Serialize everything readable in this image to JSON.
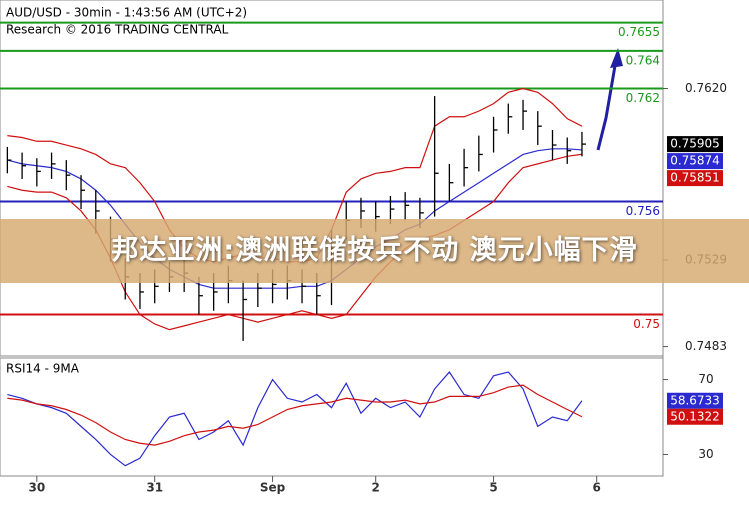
{
  "banner": "邦达亚洲:澳洲联储按兵不动 澳元小幅下滑",
  "chart_data": [
    {
      "type": "ohlc",
      "title": "AUD/USD - 30min - 1:43:56 AM (UTC+2)",
      "subtitle": "Research © 2016 TRADING CENTRAL",
      "x": [
        0,
        1,
        2,
        3,
        4,
        5,
        6,
        7,
        8,
        9,
        10,
        11,
        12,
        13,
        14,
        15,
        16,
        17,
        18,
        19,
        20,
        21,
        22,
        23,
        24,
        25,
        26,
        27,
        28,
        29,
        30,
        31,
        32,
        33,
        34,
        35,
        36,
        37,
        38,
        39
      ],
      "high": [
        0.7589,
        0.7586,
        0.7583,
        0.7586,
        0.7582,
        0.7574,
        0.7566,
        0.7552,
        0.753,
        0.7522,
        0.7524,
        0.7528,
        0.753,
        0.752,
        0.7522,
        0.7526,
        0.7518,
        0.7522,
        0.7524,
        0.7526,
        0.7524,
        0.7522,
        0.7545,
        0.756,
        0.7562,
        0.756,
        0.7563,
        0.7565,
        0.7562,
        0.7616,
        0.758,
        0.7588,
        0.7595,
        0.7605,
        0.7612,
        0.7614,
        0.7608,
        0.7598,
        0.7594,
        0.7597
      ],
      "low": [
        0.7575,
        0.7572,
        0.7568,
        0.7572,
        0.7566,
        0.7556,
        0.7543,
        0.7528,
        0.7508,
        0.7503,
        0.7506,
        0.7512,
        0.7512,
        0.75,
        0.7502,
        0.7506,
        0.7486,
        0.7504,
        0.7506,
        0.7508,
        0.7506,
        0.75,
        0.7505,
        0.754,
        0.7546,
        0.7544,
        0.7548,
        0.755,
        0.7546,
        0.7552,
        0.756,
        0.7568,
        0.7576,
        0.7586,
        0.7596,
        0.7598,
        0.759,
        0.7582,
        0.758,
        0.7584
      ],
      "close": [
        0.7582,
        0.7579,
        0.7576,
        0.758,
        0.7574,
        0.7566,
        0.7555,
        0.754,
        0.752,
        0.7512,
        0.7515,
        0.752,
        0.7522,
        0.751,
        0.7512,
        0.7518,
        0.7508,
        0.7514,
        0.7516,
        0.7518,
        0.7515,
        0.751,
        0.7535,
        0.755,
        0.7555,
        0.7552,
        0.7556,
        0.7558,
        0.7554,
        0.7575,
        0.757,
        0.7578,
        0.7585,
        0.7598,
        0.7605,
        0.7608,
        0.76,
        0.759,
        0.7587,
        0.75905
      ],
      "bar_color": "#000000",
      "series": [
        {
          "color": "#d01010",
          "values": [
            0.7595,
            0.7594,
            0.7592,
            0.7592,
            0.759,
            0.7588,
            0.7585,
            0.758,
            0.7578,
            0.757,
            0.756,
            0.7545,
            0.7535,
            0.753,
            0.7528,
            0.753,
            0.7532,
            0.753,
            0.753,
            0.7528,
            0.7528,
            0.753,
            0.7545,
            0.7565,
            0.7572,
            0.7575,
            0.7576,
            0.7578,
            0.7578,
            0.76,
            0.7605,
            0.7605,
            0.7608,
            0.7612,
            0.7618,
            0.762,
            0.7618,
            0.7612,
            0.7604,
            0.76
          ]
        },
        {
          "color": "#d01010",
          "values": [
            0.7568,
            0.7566,
            0.7565,
            0.7565,
            0.7562,
            0.7555,
            0.7545,
            0.753,
            0.7512,
            0.75,
            0.7495,
            0.7492,
            0.7494,
            0.7496,
            0.7498,
            0.75,
            0.7498,
            0.7496,
            0.7498,
            0.75,
            0.7502,
            0.75,
            0.7498,
            0.75,
            0.751,
            0.752,
            0.7528,
            0.7535,
            0.754,
            0.7542,
            0.7545,
            0.755,
            0.7555,
            0.756,
            0.757,
            0.7578,
            0.758,
            0.7582,
            0.7584,
            0.75851
          ]
        },
        {
          "color": "#2a2ad0",
          "values": [
            0.7582,
            0.758,
            0.7579,
            0.7578,
            0.7576,
            0.7572,
            0.7566,
            0.7558,
            0.7548,
            0.7538,
            0.753,
            0.7524,
            0.752,
            0.7516,
            0.7514,
            0.7514,
            0.7514,
            0.7514,
            0.7514,
            0.7514,
            0.7515,
            0.7515,
            0.7518,
            0.7524,
            0.753,
            0.7536,
            0.754,
            0.7545,
            0.7548,
            0.7555,
            0.756,
            0.7565,
            0.757,
            0.7575,
            0.758,
            0.7585,
            0.7587,
            0.7588,
            0.7588,
            0.75874
          ]
        }
      ],
      "levels": [
        0.7655,
        0.764,
        0.762,
        0.756,
        0.75
      ],
      "level_colors": [
        "#1a9a1a",
        "#1a9a1a",
        "#1a9a1a",
        "#2222bb",
        "#d01010"
      ],
      "xlim": [
        -0.5,
        44.5
      ],
      "ylim": [
        0.7478,
        0.7667
      ],
      "yticks": [
        {
          "value": 0.762,
          "label": "0.7620"
        },
        0.7529,
        0.7483
      ]
    },
    {
      "type": "line",
      "title": "RSI14 - 9MA",
      "x": [
        0,
        1,
        2,
        3,
        4,
        5,
        6,
        7,
        8,
        9,
        10,
        11,
        12,
        13,
        14,
        15,
        16,
        17,
        18,
        19,
        20,
        21,
        22,
        23,
        24,
        25,
        26,
        27,
        28,
        29,
        30,
        31,
        32,
        33,
        34,
        35,
        36,
        37,
        38,
        39
      ],
      "series": [
        {
          "color": "#2a2ad0",
          "values": [
            62,
            60,
            57,
            55,
            52,
            45,
            38,
            30,
            24,
            28,
            40,
            50,
            52,
            38,
            42,
            48,
            35,
            55,
            70,
            60,
            58,
            62,
            55,
            68,
            52,
            60,
            55,
            58,
            50,
            65,
            74,
            62,
            60,
            72,
            74,
            65,
            45,
            50,
            48,
            58.6733
          ]
        },
        {
          "color": "#d01010",
          "values": [
            60,
            59,
            57,
            56,
            54,
            51,
            47,
            42,
            38,
            36,
            35,
            37,
            40,
            42,
            43,
            45,
            44,
            46,
            50,
            54,
            56,
            57,
            58,
            60,
            59,
            58,
            58,
            59,
            57,
            58,
            61,
            61,
            61,
            63,
            66,
            67,
            62,
            58,
            54,
            50.1322
          ]
        }
      ],
      "xlim": [
        -0.5,
        44.5
      ],
      "ylim": [
        18.5,
        81.5
      ],
      "yticks": [
        30,
        70
      ],
      "xticks": [
        {
          "value": 2,
          "label": "30"
        },
        {
          "value": 10,
          "label": "31"
        },
        {
          "value": 18,
          "label": "Sep"
        },
        {
          "value": 25,
          "label": "2"
        },
        {
          "value": 33,
          "label": "5"
        },
        {
          "value": 40,
          "label": "6"
        }
      ]
    }
  ]
}
